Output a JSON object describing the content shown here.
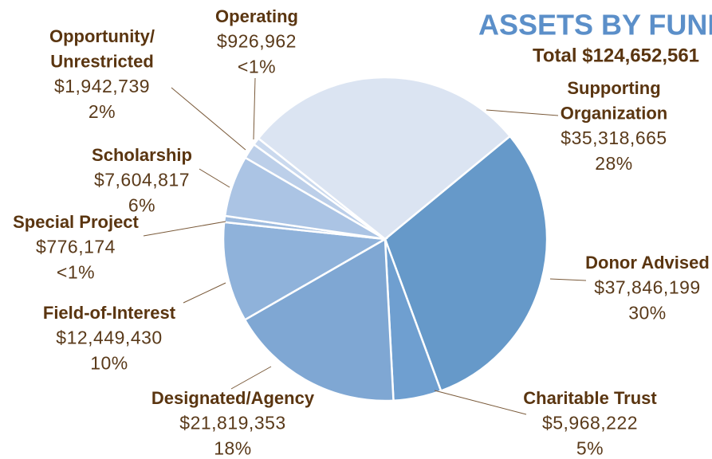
{
  "chart_data": {
    "type": "pie",
    "title": "ASSETS BY FUND",
    "subtitle": "Total $124,652,561",
    "categories": [
      [
        "Donor Advised"
      ],
      [
        "Charitable Trust"
      ],
      [
        "Designated/Agency"
      ],
      [
        "Field-of-Interest"
      ],
      [
        "Special Project"
      ],
      [
        "Scholarship"
      ],
      [
        "Opportunity/",
        "Unrestricted"
      ],
      [
        "Operating"
      ],
      [
        "Supporting",
        "Organization"
      ]
    ],
    "values": [
      37846199,
      5968222,
      21819353,
      12449430,
      776174,
      7604817,
      1942739,
      926962,
      35318665
    ],
    "value_labels": [
      "$37,846,199",
      "$5,968,222",
      "$21,819,353",
      "$12,449,430",
      "$776,174",
      "$7,604,817",
      "$1,942,739",
      "$926,962",
      "$35,318,665"
    ],
    "percents": [
      30,
      5,
      18,
      10,
      0.6,
      6,
      2,
      0.7,
      28
    ],
    "percent_labels": [
      "30%",
      "5%",
      "18%",
      "10%",
      "<1%",
      "6%",
      "2%",
      "<1%",
      "28%"
    ],
    "colors": [
      "#6699c9",
      "#6f9fd0",
      "#7fa7d3",
      "#8fb2da",
      "#9ebbde",
      "#abc4e4",
      "#bccfe9",
      "#cad9ee",
      "#dbe4f2"
    ]
  }
}
